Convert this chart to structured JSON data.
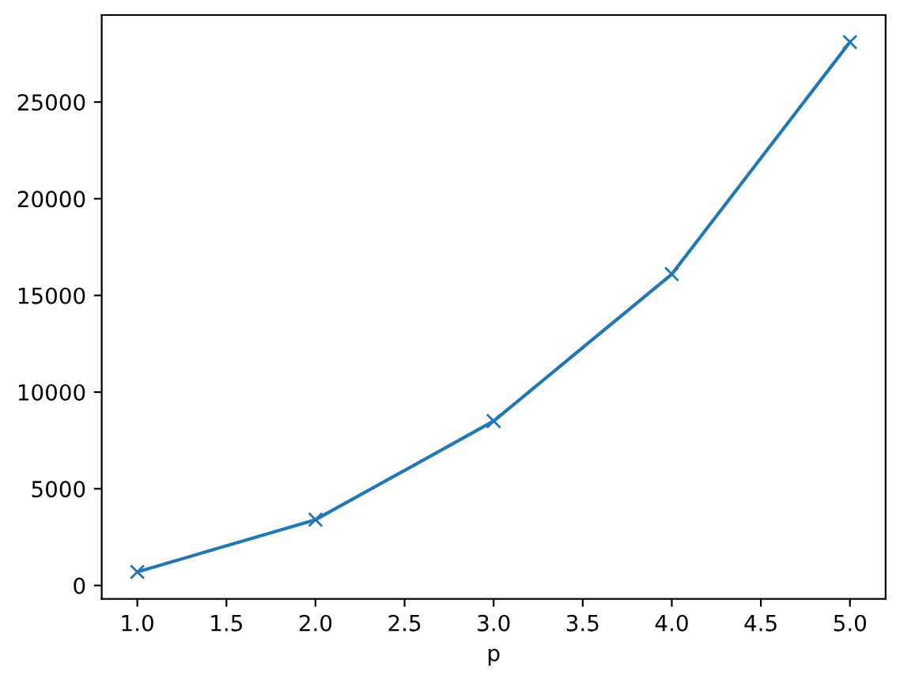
{
  "chart_data": {
    "type": "line",
    "xlabel": "p",
    "x": [
      1,
      2,
      3,
      4,
      5
    ],
    "values": [
      700,
      3400,
      8500,
      16100,
      28100
    ],
    "color": "#1f77b4",
    "marker": "cross",
    "line_style": "solid",
    "xlim": [
      0.8,
      5.2
    ],
    "ylim": [
      -700,
      29500
    ],
    "xticks": [
      {
        "value": 1,
        "label": "1.0"
      },
      {
        "value": 1.5,
        "label": "1.5"
      },
      {
        "value": 2,
        "label": "2.0"
      },
      {
        "value": 2.5,
        "label": "2.5"
      },
      {
        "value": 3,
        "label": "3.0"
      },
      {
        "value": 3.5,
        "label": "3.5"
      },
      {
        "value": 4,
        "label": "4.0"
      },
      {
        "value": 4.5,
        "label": "4.5"
      },
      {
        "value": 5,
        "label": "5.0"
      }
    ],
    "yticks": [
      0,
      5000,
      10000,
      15000,
      20000,
      25000
    ],
    "grid": false
  }
}
